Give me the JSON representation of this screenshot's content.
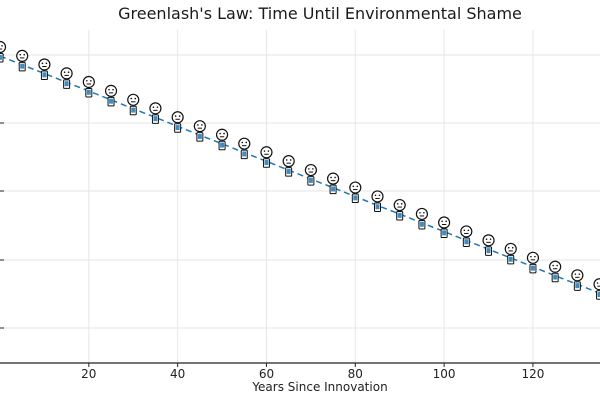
{
  "chart_data": {
    "type": "line",
    "title": "Greenlash's Law: Time Until Environmental Shame",
    "xlabel": "Years Since Innovation",
    "ylabel": "",
    "x_ticks": [
      20,
      40,
      60,
      80,
      100,
      120
    ],
    "xlim": [
      0,
      136
    ],
    "ylim": [
      0,
      1
    ],
    "grid": true,
    "series": [
      {
        "line_style": "dashed",
        "marker": "face-emoji-with-phone",
        "color": "#1f77b4",
        "x": [
          0,
          5,
          10,
          15,
          20,
          25,
          30,
          35,
          40,
          45,
          50,
          55,
          60,
          65,
          70,
          75,
          80,
          85,
          90,
          95,
          100,
          105,
          110,
          115,
          120,
          125,
          130,
          135
        ],
        "y": [
          1.0,
          0.972,
          0.945,
          0.917,
          0.89,
          0.862,
          0.834,
          0.807,
          0.779,
          0.751,
          0.724,
          0.696,
          0.669,
          0.641,
          0.613,
          0.586,
          0.558,
          0.53,
          0.503,
          0.475,
          0.448,
          0.42,
          0.392,
          0.365,
          0.337,
          0.309,
          0.282,
          0.254
        ]
      }
    ]
  }
}
